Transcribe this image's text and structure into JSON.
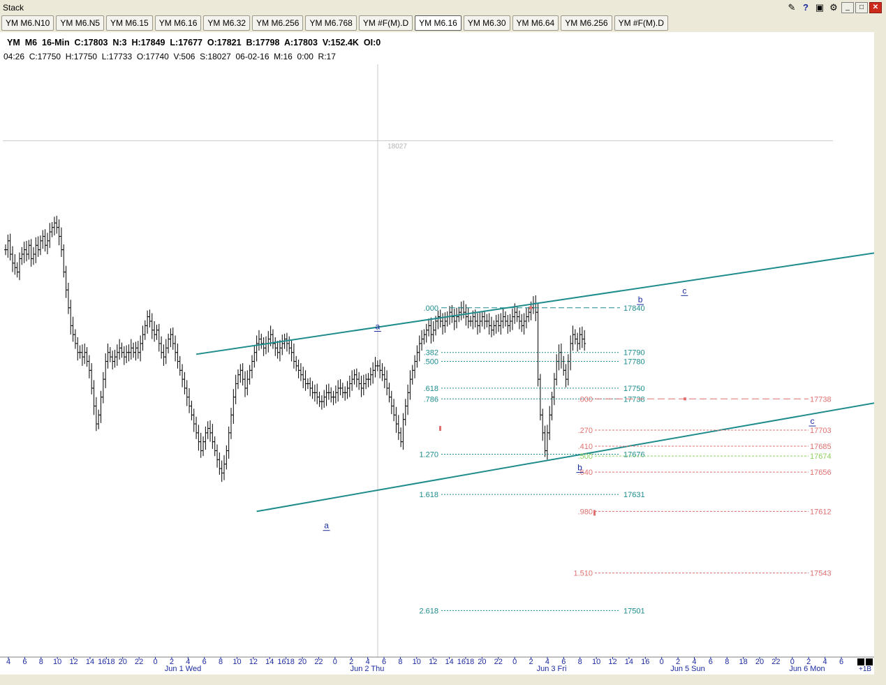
{
  "window": {
    "title": "Stack",
    "icons": [
      "notepad-icon",
      "help-icon",
      "camera-icon",
      "tools-icon"
    ],
    "controls": [
      "minimize",
      "restore",
      "close"
    ]
  },
  "tabs": [
    {
      "label": "YM M6.N10",
      "active": false
    },
    {
      "label": "YM M6.N5",
      "active": false
    },
    {
      "label": "YM M6.15",
      "active": false
    },
    {
      "label": "YM M6.16",
      "active": false
    },
    {
      "label": "YM M6.32",
      "active": false
    },
    {
      "label": "YM M6.256",
      "active": false
    },
    {
      "label": "YM M6.768",
      "active": false
    },
    {
      "label": "YM #F(M).D",
      "active": false
    },
    {
      "label": "YM M6.16",
      "active": true
    },
    {
      "label": "YM M6.30",
      "active": false
    },
    {
      "label": "YM M6.64",
      "active": false
    },
    {
      "label": "YM M6.256",
      "active": false
    },
    {
      "label": "YM #F(M).D",
      "active": false
    }
  ],
  "header": {
    "line1": "YM  M6  16-Min  C:17803  N:3  H:17849  L:17677  O:17821  B:17798  A:17803  V:152.4K  OI:0",
    "line2": "04:26  C:17750  H:17750  L:17733  O:17740  V:506  S:18027  06-02-16  M:16  0:00  R:17"
  },
  "corner": {
    "label": "+1B"
  },
  "chart_data": {
    "type": "bar",
    "instrument": "YM M6",
    "interval": "16-Min",
    "ylim": [
      17445,
      18083
    ],
    "session_line": {
      "price": 18027,
      "label": "18027"
    },
    "closes": [
      17905,
      17915,
      17900,
      17890,
      17885,
      17880,
      17895,
      17900,
      17905,
      17900,
      17910,
      17895,
      17900,
      17910,
      17905,
      17915,
      17920,
      17910,
      17915,
      17925,
      17930,
      17935,
      17930,
      17920,
      17905,
      17880,
      17860,
      17840,
      17820,
      17810,
      17800,
      17790,
      17790,
      17785,
      17790,
      17780,
      17770,
      17750,
      17730,
      17710,
      17720,
      17740,
      17760,
      17780,
      17790,
      17785,
      17780,
      17785,
      17790,
      17795,
      17790,
      17785,
      17790,
      17790,
      17795,
      17790,
      17795,
      17790,
      17800,
      17810,
      17820,
      17830,
      17825,
      17815,
      17810,
      17815,
      17800,
      17790,
      17785,
      17795,
      17805,
      17810,
      17800,
      17790,
      17780,
      17770,
      17760,
      17750,
      17740,
      17730,
      17720,
      17710,
      17700,
      17690,
      17680,
      17690,
      17700,
      17705,
      17700,
      17690,
      17680,
      17670,
      17660,
      17655,
      17665,
      17680,
      17700,
      17720,
      17740,
      17755,
      17765,
      17770,
      17760,
      17750,
      17760,
      17770,
      17780,
      17790,
      17800,
      17805,
      17800,
      17795,
      17800,
      17805,
      17810,
      17800,
      17795,
      17790,
      17795,
      17800,
      17805,
      17800,
      17795,
      17790,
      17780,
      17775,
      17770,
      17765,
      17760,
      17755,
      17755,
      17750,
      17745,
      17745,
      17740,
      17735,
      17735,
      17740,
      17745,
      17745,
      17740,
      17740,
      17745,
      17750,
      17750,
      17745,
      17745,
      17750,
      17755,
      17760,
      17765,
      17760,
      17755,
      17750,
      17755,
      17760,
      17760,
      17765,
      17770,
      17775,
      17775,
      17770,
      17765,
      17760,
      17750,
      17740,
      17730,
      17720,
      17710,
      17700,
      17690,
      17715,
      17730,
      17745,
      17760,
      17770,
      17780,
      17790,
      17800,
      17805,
      17810,
      17815,
      17820,
      17810,
      17815,
      17825,
      17830,
      17825,
      17820,
      17825,
      17830,
      17835,
      17830,
      17825,
      17830,
      17835,
      17840,
      17835,
      17830,
      17825,
      17825,
      17830,
      17825,
      17820,
      17825,
      17830,
      17825,
      17825,
      17820,
      17815,
      17820,
      17825,
      17820,
      17825,
      17830,
      17825,
      17820,
      17825,
      17830,
      17835,
      17830,
      17825,
      17820,
      17825,
      17830,
      17835,
      17840,
      17845,
      17835,
      17760,
      17720,
      17700,
      17680,
      17700,
      17720,
      17740,
      17760,
      17780,
      17790,
      17780,
      17770,
      17760,
      17780,
      17800,
      17810,
      17805,
      17800,
      17810,
      17805,
      17800
    ],
    "fib_teal": [
      {
        "ratio": ".000",
        "price": 17840,
        "label": "17840"
      },
      {
        "ratio": ".382",
        "price": 17790,
        "label": "17790"
      },
      {
        "ratio": ".500",
        "price": 17780,
        "label": "17780"
      },
      {
        "ratio": ".618",
        "price": 17750,
        "label": "17750"
      },
      {
        "ratio": ".786",
        "price": 17738,
        "label": "17738"
      },
      {
        "ratio": "1.270",
        "price": 17676,
        "label": "17676"
      },
      {
        "ratio": "1.618",
        "price": 17631,
        "label": "17631"
      },
      {
        "ratio": "2.618",
        "price": 17501,
        "label": "17501"
      }
    ],
    "fib_red": [
      {
        "ratio": ".000",
        "price": 17738,
        "label": "17738",
        "color": "#e07070"
      },
      {
        "ratio": ".270",
        "price": 17703,
        "label": "17703",
        "color": "#e07070"
      },
      {
        "ratio": ".410",
        "price": 17685,
        "label": "17685",
        "color": "#e07070"
      },
      {
        "ratio": ".500",
        "price": 17674,
        "label": "17674",
        "color": "#8cd060"
      },
      {
        "ratio": ".640",
        "price": 17656,
        "label": "17656",
        "color": "#e07070"
      },
      {
        "ratio": ".980",
        "price": 17612,
        "label": "17612",
        "color": "#e07070"
      },
      {
        "ratio": "1.510",
        "price": 17543,
        "label": "17543",
        "color": "#e07070"
      }
    ],
    "channel": {
      "upper": {
        "from_bar": 82,
        "from_price": 17788,
        "to_bar": 396,
        "to_price": 17910
      },
      "lower": {
        "from_bar": 108,
        "from_price": 17612,
        "to_bar": 421,
        "to_price": 17755
      }
    },
    "wave_labels": [
      {
        "text": "a",
        "bar": 160,
        "price": 17816
      },
      {
        "text": "a",
        "bar": 138,
        "price": 17593
      },
      {
        "text": "b",
        "bar": 247,
        "price": 17658
      },
      {
        "text": "b",
        "bar": 273,
        "price": 17846
      },
      {
        "text": "c",
        "bar": 292,
        "price": 17856
      },
      {
        "text": "c",
        "bar": 347,
        "price": 17710
      }
    ],
    "x_ticks": [
      "4",
      "6",
      "8",
      "10",
      "12",
      "14",
      "1618",
      "20",
      "22",
      "0",
      "2",
      "4",
      "6",
      "8",
      "10",
      "12",
      "14",
      "1618",
      "20",
      "22",
      "0",
      "2",
      "4",
      "6",
      "8",
      "10",
      "12",
      "14",
      "1618",
      "20",
      "22",
      "0",
      "2",
      "4",
      "6",
      "8",
      "10",
      "12",
      "14",
      "16",
      "0",
      "2",
      "4",
      "6",
      "8",
      "18",
      "20",
      "22",
      "0",
      "2",
      "4",
      "6"
    ],
    "x_dates": [
      "Jun 1 Wed",
      "Jun 2 Thu",
      "Jun 3 Fri",
      "Jun 5 Sun",
      "Jun 6 Mon"
    ],
    "colors": {
      "channel": "#1e8c8c",
      "bars": "#000000",
      "fib_teal": "#1e8c8c",
      "fib_red": "#e07070",
      "wave_label": "#1a2aa0",
      "axis_text": "#1a2aa0"
    }
  }
}
